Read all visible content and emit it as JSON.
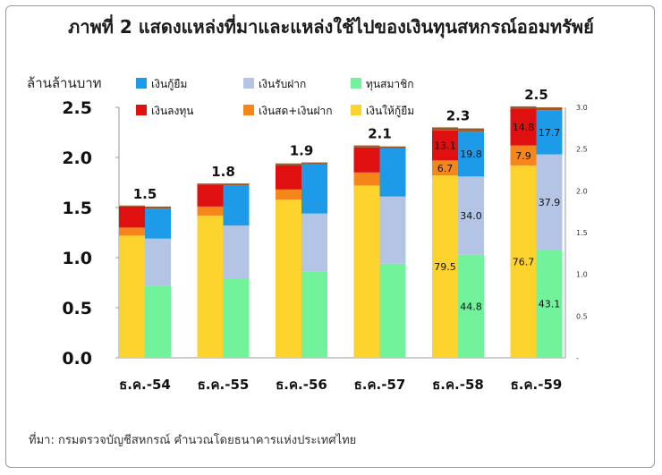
{
  "title": "ภาพที่ 2 แสดงแหล่งที่มาและแหล่งใช้ไปของเงินทุนสหกรณ์ออมทรัพย์",
  "source": "ที่มา: กรมตรวจบัญชีสหกรณ์ คำนวณโดยธนาคารแห่งประเทศไทย",
  "colors": {
    "loans_taken": "#1e9be8",
    "deposits": "#b3c4e4",
    "member_shares": "#72f29a",
    "investment": "#e01010",
    "cash_deposits": "#f7861a",
    "loans_given": "#fcd22c",
    "cap": "#9b5a2a"
  },
  "chart_data": {
    "type": "bar",
    "ylabel": "ล้านล้านบาท",
    "ylim": [
      0,
      2.5
    ],
    "y_ticks": [
      "0.0",
      "0.5",
      "1.0",
      "1.5",
      "2.0",
      "2.5"
    ],
    "y2_ticks": [
      "-",
      "0.5",
      "1.0",
      "1.5",
      "2.0",
      "2.5",
      "3.0"
    ],
    "grid": false,
    "legend_position": "top",
    "categories": [
      "ธ.ค.-54",
      "ธ.ค.-55",
      "ธ.ค.-56",
      "ธ.ค.-57",
      "ธ.ค.-58",
      "ธ.ค.-59"
    ],
    "totals": [
      "1.5",
      "1.8",
      "1.9",
      "2.1",
      "2.3",
      "2.5"
    ],
    "legend": [
      {
        "key": "loans_taken",
        "label": "เงินกู้ยืม"
      },
      {
        "key": "deposits",
        "label": "เงินรับฝาก"
      },
      {
        "key": "member_shares",
        "label": "ทุนสมาชิก"
      },
      {
        "key": "investment",
        "label": "เงินลงทุน"
      },
      {
        "key": "cash_deposits",
        "label": "เงินสด+เงินฝาก"
      },
      {
        "key": "loans_given",
        "label": "เงินให้กู้ยืม"
      }
    ],
    "uses": {
      "loans_given": [
        1.22,
        1.42,
        1.58,
        1.72,
        1.82,
        1.92
      ],
      "cash_deposits": [
        0.08,
        0.09,
        0.1,
        0.13,
        0.15,
        0.2
      ],
      "investment": [
        0.21,
        0.22,
        0.24,
        0.25,
        0.3,
        0.37
      ],
      "other": [
        0.01,
        0.01,
        0.02,
        0.02,
        0.03,
        0.02
      ]
    },
    "sources": {
      "member_shares": [
        0.72,
        0.79,
        0.86,
        0.94,
        1.03,
        1.08
      ],
      "deposits": [
        0.47,
        0.53,
        0.58,
        0.67,
        0.78,
        0.95
      ],
      "loans_taken": [
        0.3,
        0.4,
        0.49,
        0.48,
        0.45,
        0.44
      ],
      "other": [
        0.02,
        0.02,
        0.02,
        0.02,
        0.03,
        0.03
      ]
    },
    "data_labels": {
      "uses": {
        "loans_given": [
          "",
          "",
          "",
          "",
          "79.5",
          "76.7"
        ],
        "cash_deposits": [
          "",
          "",
          "",
          "",
          "6.7",
          "7.9"
        ],
        "investment": [
          "",
          "",
          "",
          "",
          "13.1",
          "14.8"
        ]
      },
      "sources": {
        "member_shares": [
          "",
          "",
          "",
          "",
          "44.8",
          "43.1"
        ],
        "deposits": [
          "",
          "",
          "",
          "",
          "34.0",
          "37.9"
        ],
        "loans_taken": [
          "",
          "",
          "",
          "",
          "19.8",
          "17.7"
        ]
      }
    }
  }
}
